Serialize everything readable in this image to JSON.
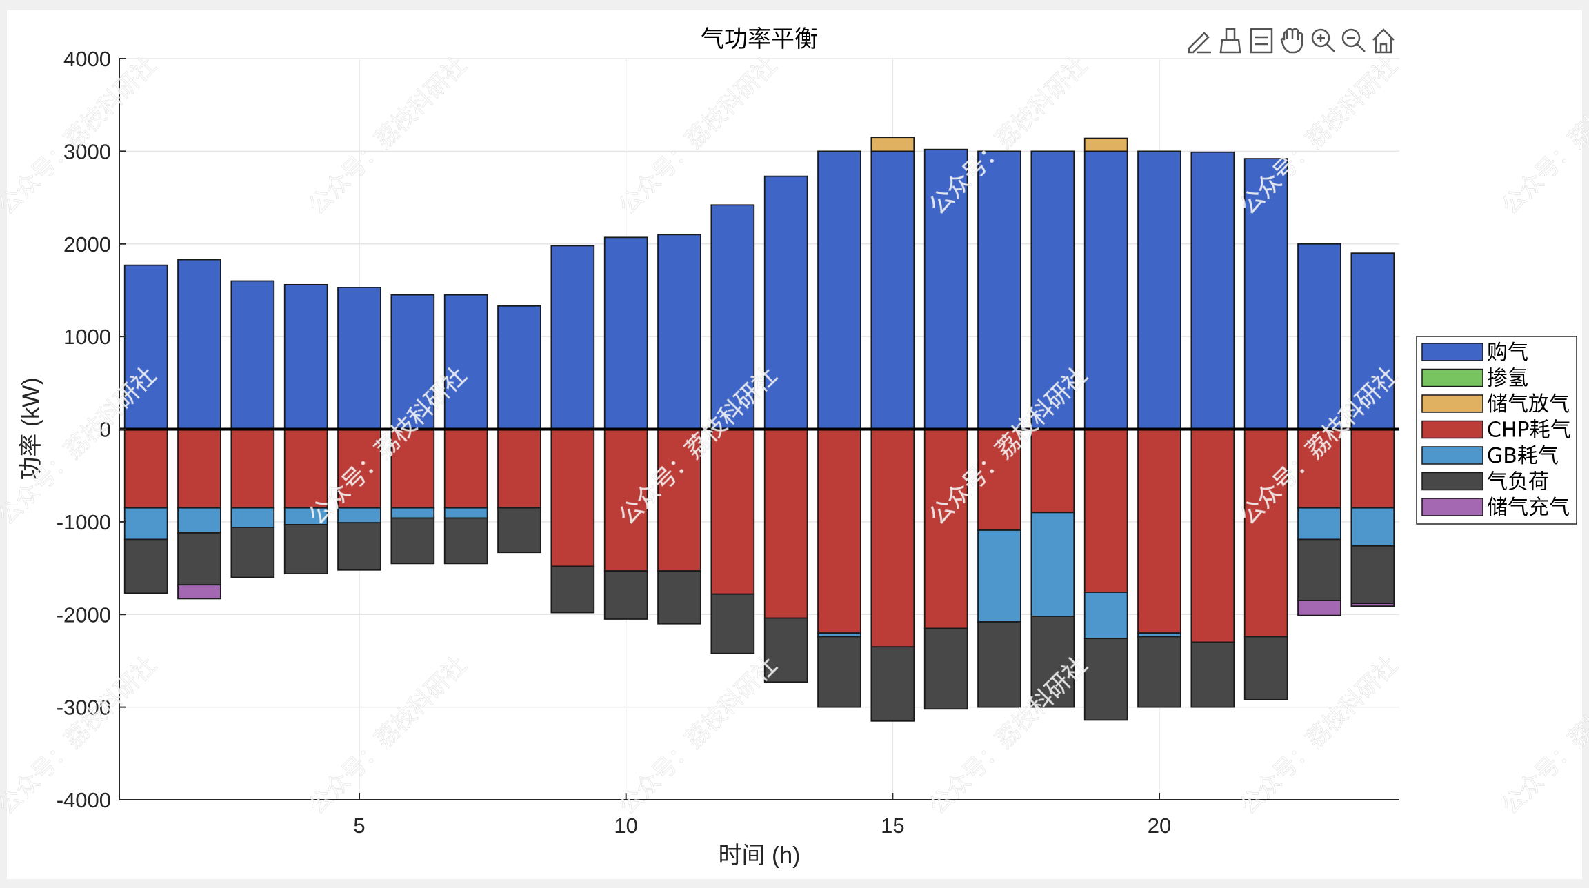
{
  "chart_data": {
    "type": "bar",
    "stacked": true,
    "title": "气功率平衡",
    "xlabel": "时间 (h)",
    "ylabel": "功率 (kW)",
    "ylim": [
      -4000,
      4000
    ],
    "xlim": [
      0.5,
      24.5
    ],
    "xticks": [
      5,
      10,
      15,
      20
    ],
    "yticks": [
      -4000,
      -3000,
      -2000,
      -1000,
      0,
      1000,
      2000,
      3000,
      4000
    ],
    "grid": true,
    "legend_position": "right",
    "categories": [
      1,
      2,
      3,
      4,
      5,
      6,
      7,
      8,
      9,
      10,
      11,
      12,
      13,
      14,
      15,
      16,
      17,
      18,
      19,
      20,
      21,
      22,
      23,
      24
    ],
    "series": [
      {
        "name": "购气",
        "color": "#3f66c7",
        "values": [
          1770,
          1830,
          1600,
          1560,
          1530,
          1450,
          1450,
          1330,
          1980,
          2070,
          2100,
          2420,
          2730,
          3000,
          3000,
          3020,
          3000,
          3000,
          3000,
          3000,
          2990,
          2920,
          2000,
          1900
        ]
      },
      {
        "name": "掺氢",
        "color": "#77c461",
        "values": [
          0,
          0,
          0,
          0,
          0,
          0,
          0,
          0,
          0,
          0,
          0,
          0,
          0,
          0,
          0,
          0,
          0,
          0,
          0,
          0,
          0,
          0,
          0,
          0
        ]
      },
      {
        "name": "储气放气",
        "color": "#e0b160",
        "values": [
          0,
          0,
          0,
          0,
          0,
          0,
          0,
          0,
          0,
          0,
          0,
          0,
          0,
          0,
          150,
          0,
          0,
          0,
          140,
          0,
          0,
          0,
          0,
          0
        ]
      },
      {
        "name": "CHP耗气",
        "color": "#bc3c37",
        "values": [
          -850,
          -850,
          -850,
          -850,
          -850,
          -850,
          -850,
          -850,
          -1480,
          -1530,
          -1530,
          -1780,
          -2040,
          -2200,
          -2350,
          -2150,
          -1090,
          -900,
          -1760,
          -2200,
          -2300,
          -2240,
          -850,
          -850
        ]
      },
      {
        "name": "GB耗气",
        "color": "#4e97cc",
        "values": [
          -340,
          -270,
          -210,
          -180,
          -160,
          -110,
          -110,
          0,
          0,
          0,
          0,
          0,
          0,
          -40,
          0,
          0,
          -990,
          -1120,
          -500,
          -40,
          0,
          0,
          -340,
          -410
        ]
      },
      {
        "name": "气负荷",
        "color": "#484848",
        "values": [
          -580,
          -560,
          -540,
          -530,
          -510,
          -490,
          -490,
          -480,
          -500,
          -520,
          -570,
          -640,
          -690,
          -760,
          -800,
          -870,
          -920,
          -980,
          -880,
          -760,
          -700,
          -680,
          -660,
          -620
        ]
      },
      {
        "name": "储气充气",
        "color": "#a467b2",
        "values": [
          0,
          -150,
          0,
          0,
          0,
          0,
          0,
          0,
          0,
          0,
          0,
          0,
          0,
          0,
          0,
          0,
          0,
          0,
          0,
          0,
          0,
          0,
          -160,
          -30
        ]
      }
    ]
  },
  "watermark": "公众号：荔枝科研社",
  "toolbar": {
    "icons": [
      "edit-icon",
      "brush-icon",
      "datatip-icon",
      "pan-icon",
      "zoom-in-icon",
      "zoom-out-icon",
      "home-icon"
    ]
  }
}
